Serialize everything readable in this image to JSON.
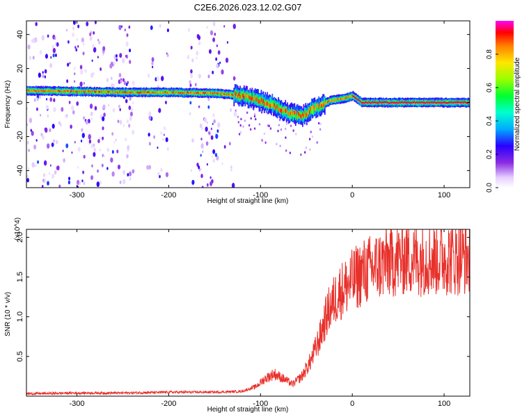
{
  "figure": {
    "title": "C2E6.2026.023.12.02.G07"
  },
  "chart_data": [
    {
      "type": "heatmap",
      "xlabel": "Height of straight line (km)",
      "ylabel": "Frequency (Hz)",
      "xlim": [
        -355,
        128
      ],
      "ylim": [
        -50,
        48
      ],
      "xticks": [
        -300,
        -200,
        -100,
        0,
        100
      ],
      "yticks": [
        -40,
        -20,
        0,
        20,
        40
      ],
      "colorbar": {
        "label": "Normalized spectral amplitude",
        "range": [
          0,
          1
        ],
        "ticks": [
          0.0,
          0.2,
          0.4,
          0.6,
          0.8
        ]
      },
      "dominant_track": {
        "x": [
          -355,
          -300,
          -250,
          -200,
          -150,
          -120,
          -100,
          -85,
          -70,
          -55,
          -45,
          -35,
          -25,
          -15,
          -5,
          0,
          10,
          50,
          128
        ],
        "y": [
          7,
          6.5,
          6,
          6,
          5.5,
          4,
          1,
          -2,
          -6,
          -8,
          -4,
          -2,
          1,
          2,
          3,
          4,
          0,
          0,
          0
        ]
      }
    },
    {
      "type": "line",
      "xlabel": "Height of straight line (km)",
      "ylabel": "SNR (10 * v/v)",
      "y_multiplier": "(x10^4)",
      "xlim": [
        -355,
        128
      ],
      "ylim": [
        0,
        2.1
      ],
      "xticks": [
        -300,
        -200,
        -100,
        0,
        100
      ],
      "yticks": [
        0.5,
        1.0,
        1.5,
        2.0
      ],
      "series": [
        {
          "color": "#e8302a",
          "x": [
            -355,
            -300,
            -250,
            -200,
            -150,
            -120,
            -105,
            -95,
            -85,
            -75,
            -65,
            -55,
            -45,
            -40,
            -35,
            -30,
            -25,
            -20,
            -15,
            -10,
            -5,
            0,
            10,
            20,
            30,
            40,
            50,
            60,
            70,
            80,
            90,
            100,
            110,
            120,
            128
          ],
          "y": [
            0.03,
            0.04,
            0.04,
            0.05,
            0.05,
            0.06,
            0.12,
            0.22,
            0.28,
            0.22,
            0.15,
            0.25,
            0.45,
            0.6,
            0.75,
            0.95,
            1.1,
            1.2,
            1.3,
            1.35,
            1.4,
            1.45,
            1.55,
            1.6,
            1.65,
            1.7,
            1.72,
            1.75,
            1.72,
            1.75,
            1.73,
            1.75,
            1.74,
            1.76,
            1.75
          ]
        }
      ]
    }
  ]
}
